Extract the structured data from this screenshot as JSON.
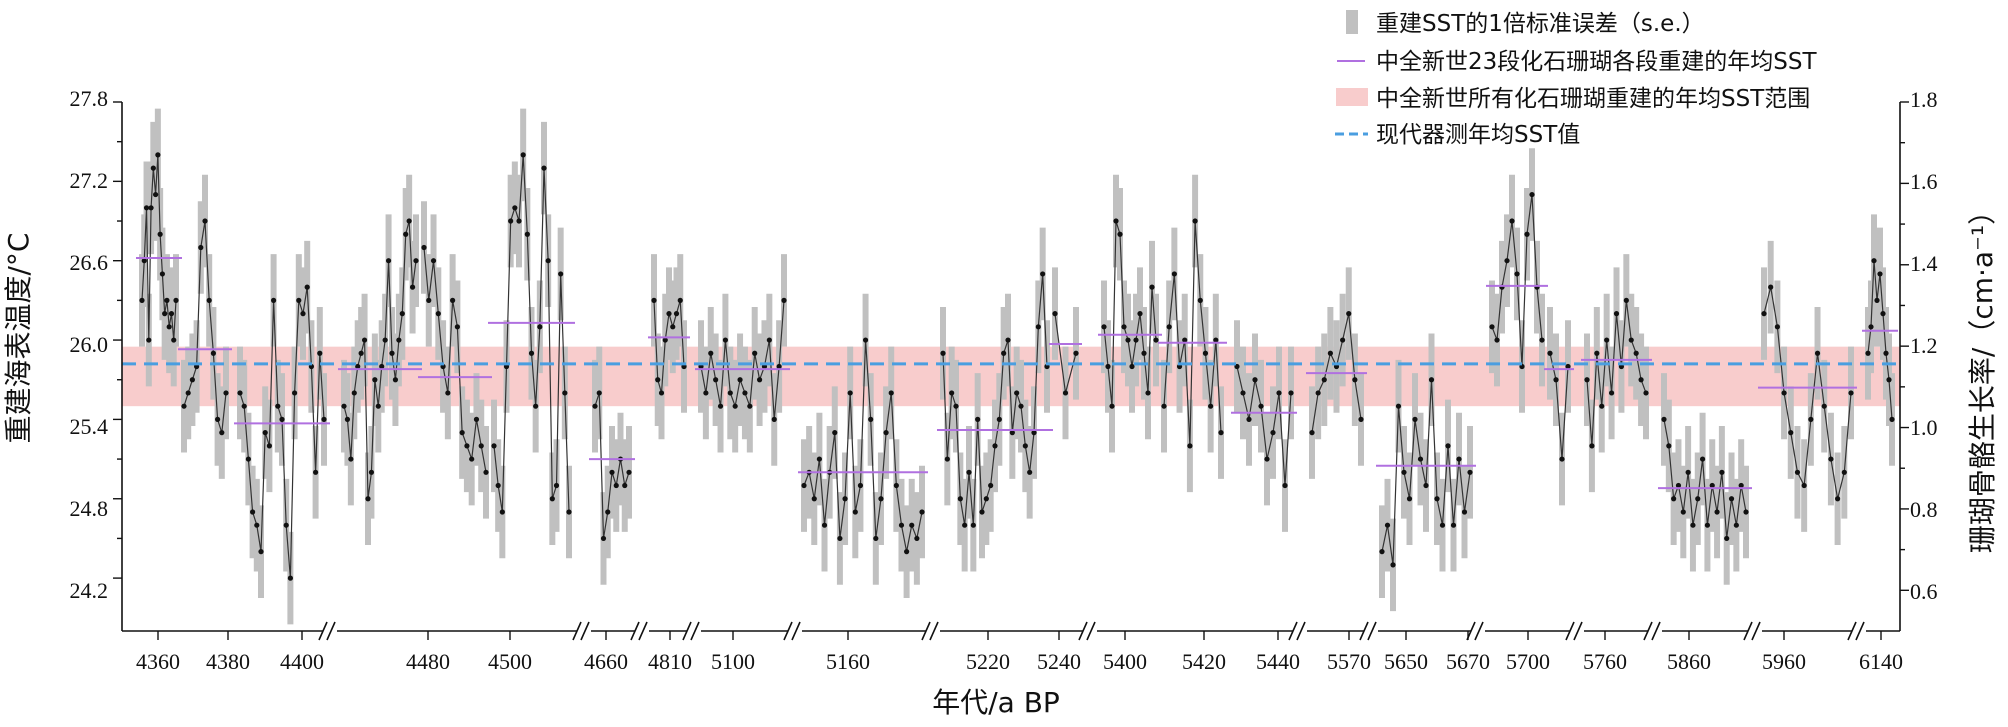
{
  "chart_data": {
    "type": "line",
    "y_left": {
      "label": "重建海表温度/°C",
      "range": [
        23.8,
        27.8
      ],
      "ticks": [
        "24.2",
        "24.8",
        "25.4",
        "26.0",
        "26.6",
        "27.2",
        "27.8"
      ]
    },
    "y_right": {
      "label": "珊瑚骨骼生长率/（cm·a⁻¹）",
      "range": [
        0.5,
        1.8
      ],
      "ticks": [
        "0.6",
        "0.8",
        "1.0",
        "1.2",
        "1.4",
        "1.6",
        "1.8"
      ]
    },
    "x_axis": {
      "label": "年代/a BP",
      "ticks": [
        "4360",
        "4380",
        "4400",
        "4480",
        "4500",
        "4660",
        "4810",
        "5100",
        "5160",
        "5220",
        "5240",
        "5400",
        "5420",
        "5440",
        "5570",
        "5650",
        "5670",
        "5700",
        "5760",
        "5860",
        "5960",
        "6140"
      ]
    },
    "legend": [
      {
        "label": "重建SST的1倍标准误差（s.e.）",
        "color": "#c0c0c0",
        "kind": "errorbar"
      },
      {
        "label": "中全新世23段化石珊瑚各段重建的年均SST",
        "color": "#b070e0",
        "kind": "segment-mean"
      },
      {
        "label": "中全新世所有化石珊瑚重建的年均SST范围",
        "color": "#f8cccc",
        "kind": "band"
      },
      {
        "label": "现代器测年均SST值",
        "color": "#4a9ee0",
        "kind": "modern-line"
      }
    ],
    "modern_sst": 25.82,
    "sst_band": [
      25.5,
      25.95
    ],
    "segments": [
      {
        "id": 1,
        "x_start": 4357,
        "x_end": 4369,
        "mean_sst": 26.62,
        "sst": [
          26.3,
          26.6,
          27.0,
          26.0,
          27.0,
          27.3,
          27.1,
          27.4,
          26.8,
          26.5,
          26.2,
          26.3,
          26.1,
          26.2,
          26.0,
          26.3
        ]
      },
      {
        "id": 2,
        "x_start": 4370,
        "x_end": 4378,
        "mean_sst": 25.93,
        "sst": [
          25.5,
          25.6,
          25.7,
          25.8,
          26.7,
          26.9,
          26.3,
          25.9,
          25.4,
          25.3,
          25.6
        ]
      },
      {
        "id": 3,
        "x_start": 4380,
        "x_end": 4402,
        "mean_sst": 25.37,
        "sst": [
          25.6,
          25.5,
          25.1,
          24.7,
          24.6,
          24.4,
          25.3,
          25.2,
          26.3,
          25.5,
          25.4,
          24.6,
          24.2,
          25.6,
          26.3,
          26.2,
          26.4,
          25.8,
          25.0,
          25.9,
          25.4
        ]
      },
      {
        "id": 4,
        "x_start": 4440,
        "x_end": 4480,
        "mean_sst": 25.78,
        "sst": [
          25.5,
          25.4,
          25.1,
          25.6,
          25.8,
          25.9,
          26.0,
          24.8,
          25.0,
          25.7,
          25.5,
          25.8,
          26.0,
          26.6,
          25.9,
          25.7,
          26.0,
          26.2,
          26.8,
          26.9,
          26.4,
          26.6
        ]
      },
      {
        "id": 5,
        "x_start": 4480,
        "x_end": 4486,
        "mean_sst": 25.72,
        "sst": [
          26.7,
          26.3,
          26.6,
          26.2,
          25.8,
          25.6,
          26.3,
          26.1,
          25.3,
          25.2,
          25.1,
          25.4,
          25.2,
          25.0
        ]
      },
      {
        "id": 6,
        "x_start": 4488,
        "x_end": 4523,
        "mean_sst": 26.13,
        "sst": [
          25.2,
          24.9,
          24.7,
          25.8,
          26.9,
          27.0,
          26.9,
          27.4,
          26.8,
          25.9,
          25.5,
          26.1,
          27.3,
          26.6,
          24.8,
          24.9,
          26.5,
          25.6,
          24.7
        ]
      },
      {
        "id": 7,
        "x_start": 4650,
        "x_end": 4670,
        "mean_sst": 25.1,
        "sst": [
          25.5,
          25.6,
          24.5,
          24.7,
          25.0,
          24.9,
          25.1,
          24.9,
          25.0
        ]
      },
      {
        "id": 8,
        "x_start": 4800,
        "x_end": 4830,
        "mean_sst": 26.02,
        "sst": [
          26.3,
          25.7,
          25.6,
          26.0,
          26.2,
          26.1,
          26.2,
          26.3,
          25.8
        ]
      },
      {
        "id": 9,
        "x_start": 5090,
        "x_end": 5125,
        "mean_sst": 25.78,
        "sst": [
          25.8,
          25.6,
          25.9,
          25.7,
          25.5,
          26.0,
          25.6,
          25.5,
          25.7,
          25.6,
          25.5,
          25.9,
          25.7,
          25.8,
          26.0,
          25.4,
          25.8,
          26.3
        ]
      },
      {
        "id": 10,
        "x_start": 5145,
        "x_end": 5185,
        "mean_sst": 25.0,
        "sst": [
          24.9,
          25.0,
          24.8,
          25.1,
          24.6,
          25.0,
          25.3,
          24.5,
          24.8,
          25.6,
          24.7,
          24.9,
          26.0,
          25.4,
          24.5,
          24.8,
          25.3,
          25.6,
          24.9,
          24.6,
          24.4,
          24.6,
          24.5,
          24.7
        ]
      },
      {
        "id": 11,
        "x_start": 5205,
        "x_end": 5235,
        "mean_sst": 25.32,
        "sst": [
          25.9,
          25.1,
          25.6,
          25.5,
          24.8,
          24.6,
          25.0,
          24.6,
          25.4,
          24.7,
          24.8,
          24.9,
          25.2,
          25.4,
          25.9,
          26.0,
          25.3,
          25.6,
          25.5,
          25.2,
          25.0,
          25.3,
          26.1,
          26.5,
          25.8
        ]
      },
      {
        "id": 12,
        "x_start": 5235,
        "x_end": 5245,
        "mean_sst": 25.97,
        "sst": [
          26.2,
          25.6,
          25.9
        ]
      },
      {
        "id": 13,
        "x_start": 5390,
        "x_end": 5410,
        "mean_sst": 26.04,
        "sst": [
          26.1,
          25.8,
          25.5,
          26.9,
          26.8,
          26.1,
          26.0,
          25.8,
          26.0,
          26.2,
          25.9,
          25.6,
          26.4,
          26.0
        ]
      },
      {
        "id": 14,
        "x_start": 5410,
        "x_end": 5430,
        "mean_sst": 25.98,
        "sst": [
          25.5,
          26.1,
          26.5,
          25.8,
          26.0,
          25.2,
          26.9,
          26.3,
          25.9,
          25.5,
          26.0,
          25.3
        ]
      },
      {
        "id": 15,
        "x_start": 5430,
        "x_end": 5450,
        "mean_sst": 25.45,
        "sst": [
          25.8,
          25.6,
          25.4,
          25.7,
          25.5,
          25.1,
          25.3,
          25.6,
          24.9,
          25.6
        ]
      },
      {
        "id": 16,
        "x_start": 5560,
        "x_end": 5580,
        "mean_sst": 25.75,
        "sst": [
          25.3,
          25.6,
          25.7,
          25.9,
          25.8,
          26.0,
          26.2,
          25.7,
          25.4
        ]
      },
      {
        "id": 17,
        "x_start": 5640,
        "x_end": 5680,
        "mean_sst": 25.05,
        "sst": [
          24.4,
          24.6,
          24.3,
          25.5,
          25.0,
          24.8,
          25.4,
          25.1,
          24.9,
          25.7,
          24.8,
          24.6,
          25.2,
          24.6,
          25.1,
          24.7,
          25.0
        ]
      },
      {
        "id": 18,
        "x_start": 5690,
        "x_end": 5710,
        "mean_sst": 26.41,
        "sst": [
          26.1,
          26.0,
          26.4,
          26.6,
          26.9,
          26.5,
          25.8,
          26.8,
          27.1,
          26.4,
          26.0
        ]
      },
      {
        "id": 19,
        "x_start": 5710,
        "x_end": 5720,
        "mean_sst": 25.78,
        "sst": [
          25.9,
          25.7,
          25.1,
          25.8
        ]
      },
      {
        "id": 20,
        "x_start": 5750,
        "x_end": 5790,
        "mean_sst": 25.85,
        "sst": [
          25.7,
          25.2,
          25.9,
          25.5,
          26.0,
          25.6,
          26.2,
          25.8,
          26.3,
          26.0,
          25.9,
          25.7,
          25.6
        ]
      },
      {
        "id": 21,
        "x_start": 5840,
        "x_end": 5900,
        "mean_sst": 24.88,
        "sst": [
          25.4,
          25.2,
          24.8,
          24.9,
          24.7,
          25.0,
          24.6,
          24.8,
          25.1,
          24.6,
          24.9,
          24.7,
          25.0,
          24.5,
          24.8,
          24.6,
          24.9,
          24.7
        ]
      },
      {
        "id": 22,
        "x_start": 5945,
        "x_end": 5990,
        "mean_sst": 25.64,
        "sst": [
          26.2,
          26.4,
          26.1,
          25.6,
          25.3,
          25.0,
          24.9,
          25.4,
          25.9,
          25.5,
          25.1,
          24.8,
          25.0,
          25.6
        ]
      },
      {
        "id": 23,
        "x_start": 6120,
        "x_end": 6145,
        "mean_sst": 26.07,
        "sst": [
          25.9,
          26.1,
          26.6,
          26.3,
          26.5,
          26.2,
          25.9,
          25.7,
          25.4
        ]
      }
    ]
  }
}
